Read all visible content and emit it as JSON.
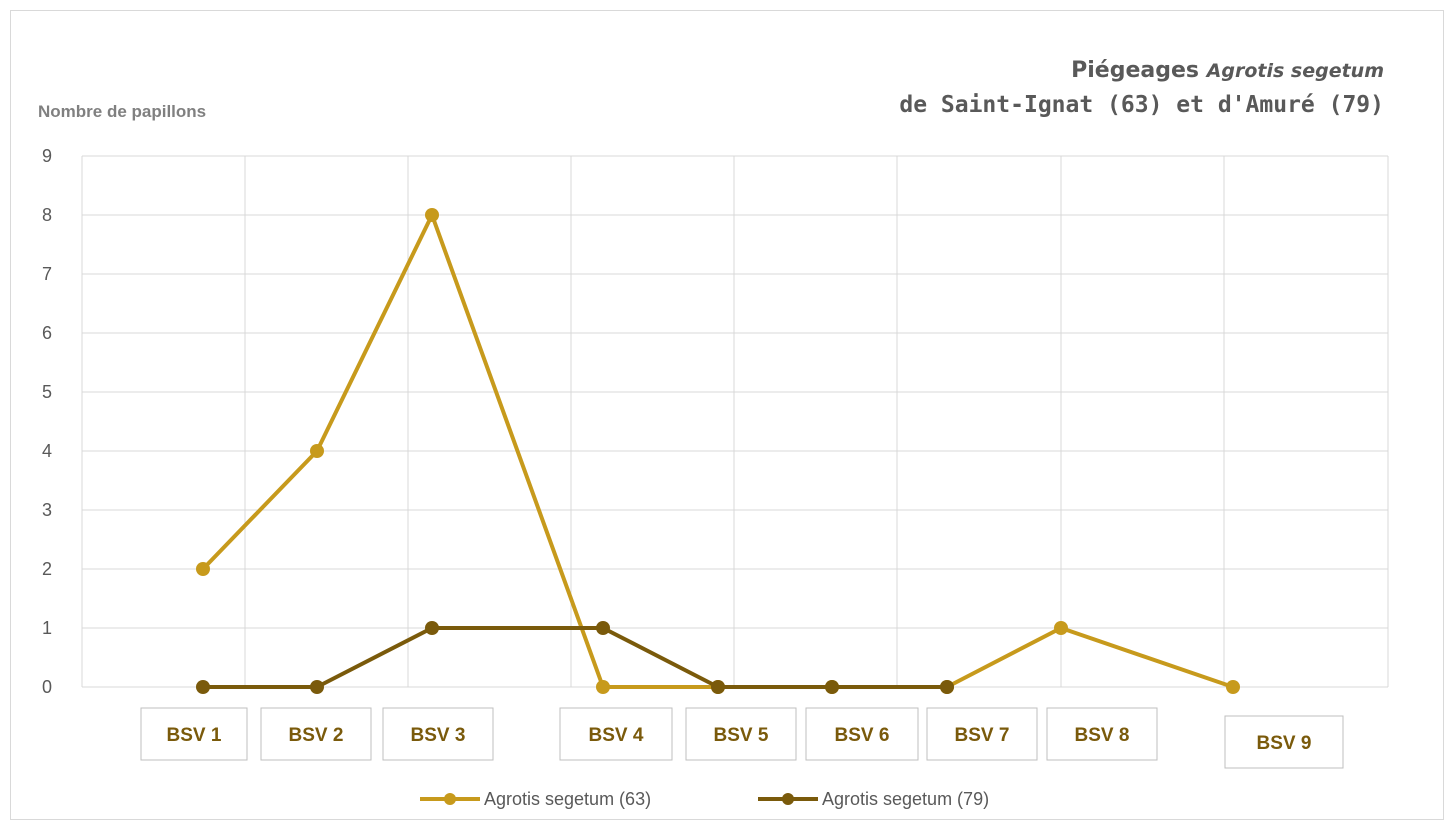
{
  "chart_data": {
    "type": "line",
    "title_main": "Piégeages",
    "title_species": "Agrotis segetum",
    "title_line2": "de Saint-Ignat (63) et d'Amuré (79)",
    "ylabel": "Nombre de papillons",
    "xlabel": "",
    "ylim": [
      0,
      9
    ],
    "yticks": [
      "0",
      "1",
      "2",
      "3",
      "4",
      "5",
      "6",
      "7",
      "8",
      "9"
    ],
    "grid": true,
    "legend_position": "bottom",
    "series": [
      {
        "name": "Agrotis segetum (63)",
        "color": "#c79a1c",
        "points": [
          {
            "x": "BSV 1",
            "y": 2
          },
          {
            "x": "BSV 2",
            "y": 4
          },
          {
            "x": "BSV 3",
            "y": 8
          },
          {
            "x": "BSV 4",
            "y": 0
          },
          {
            "x": "BSV 5",
            "y": 0
          },
          {
            "x": "BSV 6",
            "y": 0
          },
          {
            "x": "BSV 7",
            "y": 0
          },
          {
            "x": "BSV 8",
            "y": 1
          },
          {
            "x": "BSV 9",
            "y": 0
          }
        ]
      },
      {
        "name": "Agrotis segetum (79)",
        "color": "#7a5a0b",
        "points": [
          {
            "x": "BSV 1",
            "y": 0
          },
          {
            "x": "BSV 2",
            "y": 0
          },
          {
            "x": "BSV 3",
            "y": 1
          },
          {
            "x": "BSV 4",
            "y": 1
          },
          {
            "x": "BSV 5",
            "y": 0
          },
          {
            "x": "BSV 6",
            "y": 0
          },
          {
            "x": "BSV 7",
            "y": 0
          }
        ]
      }
    ],
    "labels": [
      "BSV 1",
      "BSV 2",
      "BSV 3",
      "BSV 4",
      "BSV 5",
      "BSV 6",
      "BSV 7",
      "BSV 8",
      "BSV 9"
    ],
    "label_color": "#7a5a0b"
  }
}
